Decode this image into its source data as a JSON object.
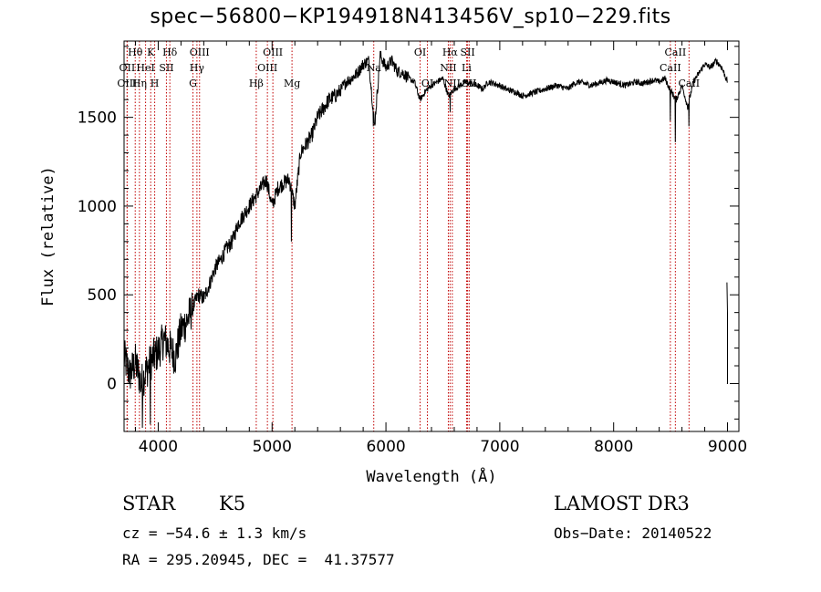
{
  "title": "spec−56800−KP194918N413456V_sp10−229.fits",
  "info": {
    "class": "STAR",
    "subclass": "K5",
    "survey": "LAMOST DR3",
    "cz": "cz = −54.6 ± 1.3 km/s",
    "obs_date": "Obs−Date: 20140522",
    "coords": "RA = 295.20945, DEC =  41.37577"
  },
  "chart_data": {
    "type": "line",
    "title": "spec−56800−KP194918N413456V_sp10−229.fits",
    "xlabel": "Wavelength (Å)",
    "ylabel": "Flux (relative)",
    "xlim": [
      3700,
      9100
    ],
    "ylim": [
      -270,
      1930
    ],
    "xticks": [
      4000,
      5000,
      6000,
      7000,
      8000,
      9000
    ],
    "yticks": [
      0,
      500,
      1000,
      1500
    ],
    "series": [
      {
        "name": "flux",
        "x": [
          3700,
          3750,
          3800,
          3850,
          3900,
          3950,
          4000,
          4050,
          4100,
          4150,
          4200,
          4250,
          4300,
          4350,
          4400,
          4450,
          4500,
          4550,
          4600,
          4650,
          4700,
          4750,
          4800,
          4850,
          4900,
          4950,
          5000,
          5050,
          5100,
          5150,
          5200,
          5250,
          5300,
          5350,
          5400,
          5450,
          5500,
          5550,
          5600,
          5650,
          5700,
          5750,
          5800,
          5850,
          5900,
          5950,
          6000,
          6050,
          6100,
          6150,
          6200,
          6250,
          6300,
          6350,
          6400,
          6450,
          6500,
          6550,
          6600,
          6650,
          6700,
          6750,
          6800,
          6850,
          6900,
          6950,
          7000,
          7050,
          7100,
          7150,
          7200,
          7250,
          7300,
          7350,
          7400,
          7450,
          7500,
          7550,
          7600,
          7650,
          7700,
          7750,
          7800,
          7850,
          7900,
          7950,
          8000,
          8050,
          8100,
          8150,
          8200,
          8250,
          8300,
          8350,
          8400,
          8450,
          8500,
          8550,
          8600,
          8650,
          8700,
          8750,
          8800,
          8850,
          8900,
          8950,
          9000
        ],
        "y": [
          150,
          50,
          120,
          0,
          80,
          140,
          180,
          250,
          200,
          150,
          300,
          350,
          420,
          500,
          480,
          560,
          650,
          700,
          760,
          800,
          900,
          950,
          1000,
          1050,
          1100,
          1150,
          1000,
          1100,
          1130,
          1150,
          1000,
          1300,
          1350,
          1400,
          1500,
          1550,
          1600,
          1620,
          1650,
          1700,
          1720,
          1750,
          1800,
          1820,
          1450,
          1850,
          1780,
          1820,
          1760,
          1750,
          1720,
          1700,
          1600,
          1650,
          1680,
          1700,
          1720,
          1620,
          1660,
          1680,
          1700,
          1690,
          1680,
          1660,
          1700,
          1690,
          1680,
          1660,
          1650,
          1640,
          1620,
          1630,
          1640,
          1650,
          1660,
          1670,
          1680,
          1670,
          1660,
          1690,
          1700,
          1690,
          1680,
          1690,
          1700,
          1710,
          1700,
          1690,
          1680,
          1690,
          1700,
          1690,
          1700,
          1710,
          1700,
          1720,
          1650,
          1600,
          1680,
          1560,
          1700,
          1750,
          1800,
          1780,
          1820,
          1780,
          1700
        ]
      }
    ],
    "dips": [
      {
        "x": 3860,
        "y": -250
      },
      {
        "x": 3930,
        "y": -230
      },
      {
        "x": 5170,
        "y": 800
      },
      {
        "x": 5890,
        "y": 1450
      },
      {
        "x": 6563,
        "y": 1530
      },
      {
        "x": 8498,
        "y": 1480
      },
      {
        "x": 8542,
        "y": 1360
      },
      {
        "x": 8662,
        "y": 1450
      }
    ],
    "edge_segment": [
      {
        "x": 8995,
        "y": 570
      },
      {
        "x": 9000,
        "y": 400
      },
      {
        "x": 9000,
        "y": 0
      },
      {
        "x": 8995,
        "y": 0
      }
    ],
    "lines": [
      {
        "label": "Hθ",
        "x": 3798,
        "row": 0
      },
      {
        "label": "OII",
        "x": 3727,
        "row": 1
      },
      {
        "label": "OIII",
        "x": 3727,
        "row": 2
      },
      {
        "label": "K",
        "x": 3934,
        "row": 0
      },
      {
        "label": "HeI",
        "x": 3889,
        "row": 1
      },
      {
        "label": "Hη",
        "x": 3835,
        "row": 2
      },
      {
        "label": "H",
        "x": 3969,
        "row": 2
      },
      {
        "label": "Hδ",
        "x": 4102,
        "row": 0
      },
      {
        "label": "SII",
        "x": 4072,
        "row": 1
      },
      {
        "label": "OIII",
        "x": 4363,
        "row": 0
      },
      {
        "label": "Hγ",
        "x": 4340,
        "row": 1
      },
      {
        "label": "G",
        "x": 4305,
        "row": 2
      },
      {
        "label": "OIII",
        "x": 5007,
        "row": 0
      },
      {
        "label": "OIII",
        "x": 4959,
        "row": 1
      },
      {
        "label": "Hβ",
        "x": 4861,
        "row": 2
      },
      {
        "label": "Mg",
        "x": 5175,
        "row": 2
      },
      {
        "label": "Na",
        "x": 5893,
        "row": 1
      },
      {
        "label": "OI",
        "x": 6300,
        "row": 0
      },
      {
        "label": "OI",
        "x": 6364,
        "row": 2
      },
      {
        "label": "Hα",
        "x": 6563,
        "row": 0
      },
      {
        "label": "NII",
        "x": 6548,
        "row": 1
      },
      {
        "label": "NII",
        "x": 6583,
        "row": 2
      },
      {
        "label": "SII",
        "x": 6717,
        "row": 0
      },
      {
        "label": "Li",
        "x": 6708,
        "row": 1
      },
      {
        "label": "SII",
        "x": 6731,
        "row": 2
      },
      {
        "label": "CaII",
        "x": 8542,
        "row": 0
      },
      {
        "label": "CaII",
        "x": 8498,
        "row": 1
      },
      {
        "label": "CaII",
        "x": 8662,
        "row": 2
      }
    ]
  }
}
